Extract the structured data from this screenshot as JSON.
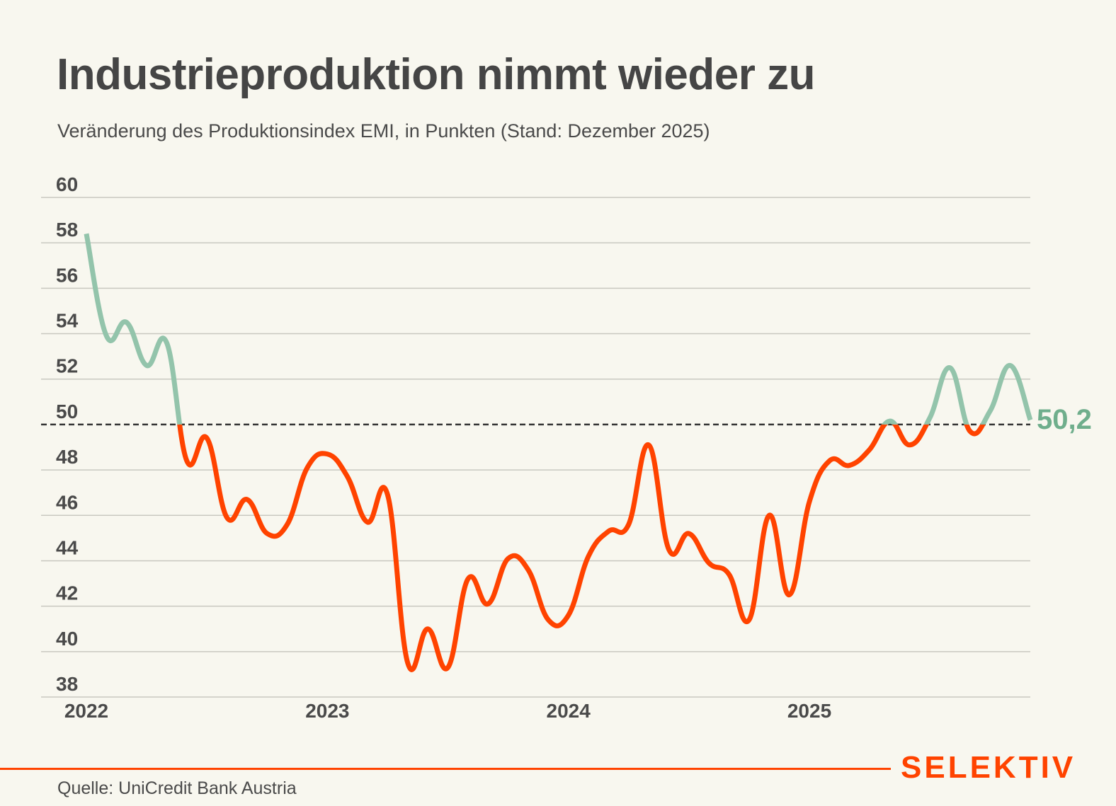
{
  "header": {
    "title": "Industrieproduktion nimmt wieder zu",
    "subtitle": "Veränderung des Produktionsindex EMI, in Punkten (Stand: Dezember 2025)"
  },
  "footer": {
    "source": "Quelle: UniCredit Bank Austria",
    "logo": "SELEKTIV"
  },
  "colors": {
    "above_threshold": "#93c4ab",
    "below_threshold": "#ff4300",
    "threshold_line": "#333333",
    "grid": "#c9c8c0",
    "end_label": "#6fae8c",
    "background": "#f8f7ef"
  },
  "chart_data": {
    "type": "line",
    "title": "Industrieproduktion nimmt wieder zu",
    "subtitle": "Veränderung des Produktionsindex EMI, in Punkten (Stand: Dezember 2025)",
    "xlabel": "",
    "ylabel": "",
    "ylim": [
      38,
      60
    ],
    "yticks": [
      60,
      58,
      56,
      54,
      52,
      50,
      48,
      46,
      44,
      42,
      40,
      38
    ],
    "xticks": [
      {
        "label": "2022",
        "index": 0
      },
      {
        "label": "2023",
        "index": 12
      },
      {
        "label": "2024",
        "index": 24
      },
      {
        "label": "2025",
        "index": 36
      }
    ],
    "grid": true,
    "threshold": 50,
    "end_label": "50,2",
    "series": [
      {
        "name": "EMI Produktionsindex",
        "x": [
          "2022-01",
          "2022-02",
          "2022-03",
          "2022-04",
          "2022-05",
          "2022-06",
          "2022-07",
          "2022-08",
          "2022-09",
          "2022-10",
          "2022-11",
          "2022-12",
          "2023-01",
          "2023-02",
          "2023-03",
          "2023-04",
          "2023-05",
          "2023-06",
          "2023-07",
          "2023-08",
          "2023-09",
          "2023-10",
          "2023-11",
          "2023-12",
          "2024-01",
          "2024-02",
          "2024-03",
          "2024-04",
          "2024-05",
          "2024-06",
          "2024-07",
          "2024-08",
          "2024-09",
          "2024-10",
          "2024-11",
          "2024-12",
          "2025-01",
          "2025-02",
          "2025-03",
          "2025-04",
          "2025-05",
          "2025-06",
          "2025-07",
          "2025-08",
          "2025-09",
          "2025-10",
          "2025-11",
          "2025-12"
        ],
        "values": [
          58.4,
          53.9,
          54.5,
          52.6,
          53.6,
          48.4,
          49.4,
          45.9,
          46.7,
          45.2,
          45.6,
          48.1,
          48.7,
          47.7,
          45.7,
          46.9,
          39.5,
          41.0,
          39.3,
          43.2,
          42.1,
          44.1,
          43.6,
          41.4,
          41.6,
          44.2,
          45.3,
          45.6,
          49.1,
          44.5,
          45.2,
          43.9,
          43.4,
          41.4,
          46.0,
          42.5,
          46.6,
          48.4,
          48.2,
          48.9,
          50.15,
          49.1,
          50.3,
          52.5,
          49.7,
          50.6,
          52.6,
          50.2
        ]
      }
    ]
  }
}
